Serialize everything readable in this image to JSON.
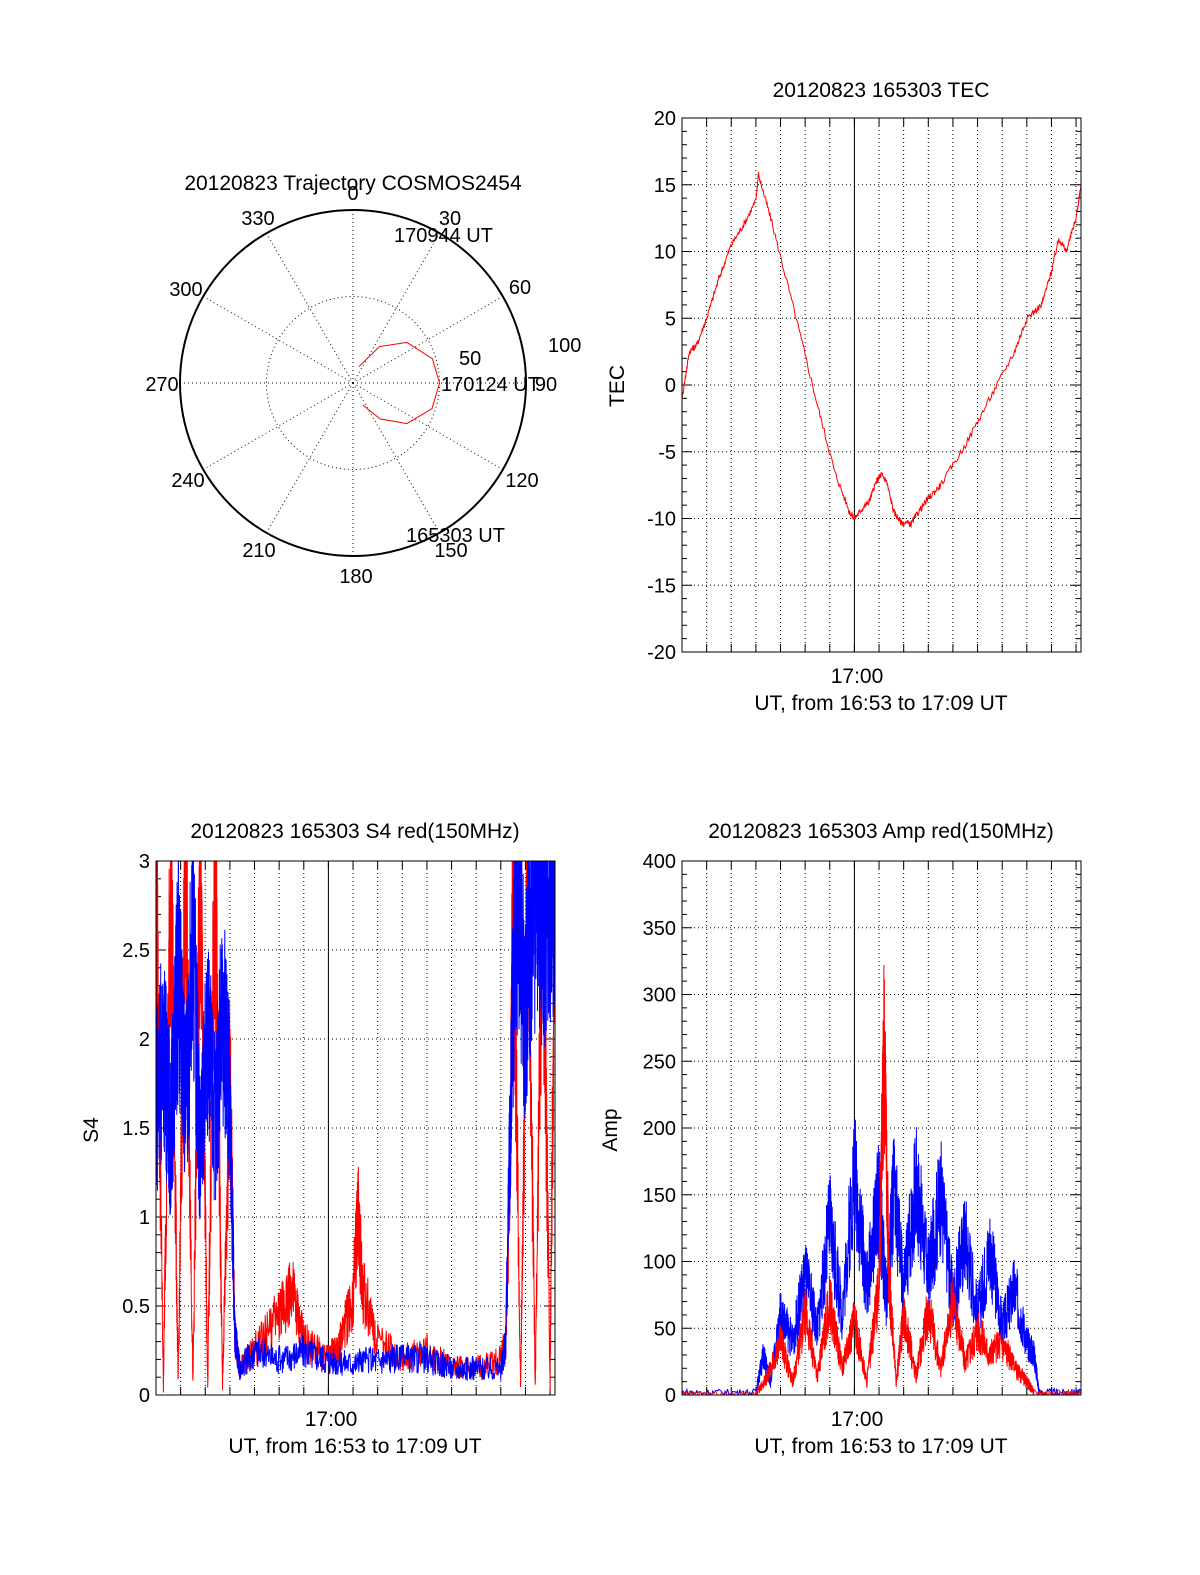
{
  "colors": {
    "red": "#ff0000",
    "blue": "#0000ff",
    "axis": "#000000"
  },
  "chart_data": [
    {
      "id": "polar",
      "type": "polar",
      "title": "20120823 Trajectory COSMOS2454",
      "angle_labels": [
        "0",
        "30",
        "60",
        "90",
        "120",
        "150",
        "180",
        "210",
        "240",
        "270",
        "300",
        "330"
      ],
      "radius_labels": [
        "50",
        "100"
      ],
      "rlim": [
        0,
        100
      ],
      "grid": true,
      "series": [
        {
          "color": "red",
          "points": [
            {
              "az": 20,
              "el": 90
            },
            {
              "az": 36,
              "el": 74
            },
            {
              "az": 53,
              "el": 61
            },
            {
              "az": 73,
              "el": 52
            },
            {
              "az": 90,
              "el": 50
            },
            {
              "az": 108,
              "el": 52
            },
            {
              "az": 127,
              "el": 61
            },
            {
              "az": 143,
              "el": 74
            },
            {
              "az": 156,
              "el": 86
            }
          ]
        }
      ],
      "annotations": [
        "170944 UT",
        "170124 UT",
        "165303 UT"
      ]
    },
    {
      "id": "tec",
      "type": "line",
      "title": "20120823 165303 TEC",
      "xlabel": "UT, from 16:53 to 17:09 UT",
      "ylabel": "TEC",
      "x_range_min": [
        0,
        16.2
      ],
      "ylim": [
        -20,
        20
      ],
      "yticks": [
        "20",
        "15",
        "10",
        "5",
        "0",
        "-5",
        "-10",
        "-15",
        "-20"
      ],
      "xtick_label": "17:00",
      "xtick_min": 7,
      "grid": true,
      "series": [
        {
          "color": "red",
          "points": [
            [
              0,
              -1
            ],
            [
              0.3,
              2.5
            ],
            [
              0.6,
              3
            ],
            [
              1,
              5
            ],
            [
              1.5,
              8
            ],
            [
              2,
              10.5
            ],
            [
              2.5,
              12
            ],
            [
              3,
              13.8
            ],
            [
              3.1,
              15.8
            ],
            [
              3.6,
              12.5
            ],
            [
              4.5,
              6
            ],
            [
              5.5,
              -1.5
            ],
            [
              6.2,
              -6.5
            ],
            [
              6.8,
              -9.5
            ],
            [
              7,
              -10
            ],
            [
              7.3,
              -9.3
            ],
            [
              7.6,
              -8.7
            ],
            [
              7.9,
              -7.2
            ],
            [
              8.1,
              -6.7
            ],
            [
              8.3,
              -7.2
            ],
            [
              8.6,
              -9.5
            ],
            [
              8.9,
              -10.3
            ],
            [
              9.3,
              -10.4
            ],
            [
              9.6,
              -9.5
            ],
            [
              10,
              -8.5
            ],
            [
              10.5,
              -7.5
            ],
            [
              11.5,
              -4.5
            ],
            [
              12.5,
              -1
            ],
            [
              13.5,
              2.5
            ],
            [
              14,
              5
            ],
            [
              14.6,
              6
            ],
            [
              15,
              8.5
            ],
            [
              15.3,
              11
            ],
            [
              15.6,
              10
            ],
            [
              16,
              12.5
            ],
            [
              16.2,
              15
            ]
          ]
        }
      ]
    },
    {
      "id": "s4",
      "type": "line",
      "title": "20120823 165303 S4 red(150MHz)",
      "xlabel": "UT, from 16:53 to 17:09 UT",
      "ylabel": "S4",
      "x_range_min": [
        0,
        16.2
      ],
      "ylim": [
        0,
        3
      ],
      "yticks": [
        "3",
        "2.5",
        "2",
        "1.5",
        "1",
        "0.5",
        "0"
      ],
      "xtick_label": "17:00",
      "xtick_min": 7,
      "grid": true,
      "series": [
        {
          "color": "red",
          "points": [
            [
              0,
              3
            ],
            [
              0.3,
              0.05
            ],
            [
              0.6,
              3
            ],
            [
              0.9,
              0.05
            ],
            [
              1.2,
              3
            ],
            [
              1.5,
              0.05
            ],
            [
              1.8,
              3
            ],
            [
              2.1,
              0.05
            ],
            [
              2.4,
              3
            ],
            [
              2.7,
              0.05
            ],
            [
              3,
              1.8
            ],
            [
              3.2,
              0.35
            ],
            [
              3.4,
              0.15
            ],
            [
              4,
              0.25
            ],
            [
              5,
              0.45
            ],
            [
              5.5,
              0.6
            ],
            [
              6,
              0.3
            ],
            [
              7,
              0.2
            ],
            [
              7.5,
              0.3
            ],
            [
              8,
              0.55
            ],
            [
              8.2,
              1
            ],
            [
              8.4,
              0.6
            ],
            [
              9,
              0.3
            ],
            [
              10,
              0.2
            ],
            [
              11,
              0.25
            ],
            [
              12,
              0.15
            ],
            [
              13,
              0.15
            ],
            [
              14,
              0.2
            ],
            [
              14.2,
              0.3
            ],
            [
              14.4,
              1.5
            ],
            [
              14.5,
              3
            ],
            [
              14.8,
              0.05
            ],
            [
              15.1,
              3
            ],
            [
              15.4,
              0.05
            ],
            [
              15.7,
              3
            ],
            [
              16,
              0.05
            ],
            [
              16.2,
              3
            ]
          ]
        },
        {
          "color": "blue",
          "points": [
            [
              0,
              1.6
            ],
            [
              0.3,
              2.0
            ],
            [
              0.6,
              1.4
            ],
            [
              0.9,
              2.4
            ],
            [
              1.2,
              1.6
            ],
            [
              1.5,
              2.6
            ],
            [
              1.8,
              1.3
            ],
            [
              2.1,
              2.1
            ],
            [
              2.4,
              1.5
            ],
            [
              2.7,
              2.2
            ],
            [
              3,
              1.6
            ],
            [
              3.2,
              0.35
            ],
            [
              3.4,
              0.15
            ],
            [
              4,
              0.25
            ],
            [
              5,
              0.2
            ],
            [
              6,
              0.25
            ],
            [
              7,
              0.2
            ],
            [
              8,
              0.18
            ],
            [
              9,
              0.2
            ],
            [
              10,
              0.2
            ],
            [
              11,
              0.2
            ],
            [
              12,
              0.15
            ],
            [
              13,
              0.15
            ],
            [
              14,
              0.15
            ],
            [
              14.2,
              0.3
            ],
            [
              14.4,
              1.6
            ],
            [
              14.6,
              3
            ],
            [
              15,
              2.2
            ],
            [
              15.3,
              3
            ],
            [
              15.6,
              2.6
            ],
            [
              16,
              2.9
            ],
            [
              16.2,
              3
            ]
          ]
        }
      ]
    },
    {
      "id": "amp",
      "type": "line",
      "title": "20120823 165303 Amp red(150MHz)",
      "xlabel": "UT, from 16:53 to 17:09 UT",
      "ylabel": "Amp",
      "x_range_min": [
        0,
        16.2
      ],
      "ylim": [
        0,
        400
      ],
      "yticks": [
        "400",
        "350",
        "300",
        "250",
        "200",
        "150",
        "100",
        "50",
        "0"
      ],
      "xtick_label": "17:00",
      "xtick_min": 7,
      "grid": true,
      "series": [
        {
          "color": "blue",
          "points": [
            [
              0,
              2
            ],
            [
              3,
              2
            ],
            [
              3.3,
              30
            ],
            [
              3.6,
              10
            ],
            [
              4,
              60
            ],
            [
              4.5,
              40
            ],
            [
              5,
              90
            ],
            [
              5.5,
              50
            ],
            [
              6,
              130
            ],
            [
              6.5,
              60
            ],
            [
              7,
              170
            ],
            [
              7.5,
              80
            ],
            [
              8,
              150
            ],
            [
              8.3,
              70
            ],
            [
              8.6,
              155
            ],
            [
              9,
              80
            ],
            [
              9.5,
              160
            ],
            [
              10,
              90
            ],
            [
              10.5,
              150
            ],
            [
              11,
              70
            ],
            [
              11.5,
              120
            ],
            [
              12,
              60
            ],
            [
              12.5,
              110
            ],
            [
              13,
              50
            ],
            [
              13.5,
              80
            ],
            [
              14,
              40
            ],
            [
              14.3,
              30
            ],
            [
              14.5,
              2
            ],
            [
              16.2,
              2
            ]
          ]
        },
        {
          "color": "red",
          "points": [
            [
              0,
              1
            ],
            [
              3,
              1
            ],
            [
              3.5,
              15
            ],
            [
              4,
              40
            ],
            [
              4.5,
              10
            ],
            [
              5,
              60
            ],
            [
              5.5,
              15
            ],
            [
              6,
              70
            ],
            [
              6.5,
              20
            ],
            [
              7,
              55
            ],
            [
              7.5,
              10
            ],
            [
              8,
              80
            ],
            [
              8.2,
              270
            ],
            [
              8.4,
              90
            ],
            [
              8.7,
              10
            ],
            [
              9,
              60
            ],
            [
              9.5,
              15
            ],
            [
              10,
              65
            ],
            [
              10.5,
              20
            ],
            [
              11,
              70
            ],
            [
              11.5,
              25
            ],
            [
              12,
              50
            ],
            [
              12.5,
              30
            ],
            [
              13,
              40
            ],
            [
              13.5,
              20
            ],
            [
              14,
              10
            ],
            [
              14.3,
              2
            ],
            [
              16.2,
              1
            ]
          ]
        }
      ]
    }
  ]
}
